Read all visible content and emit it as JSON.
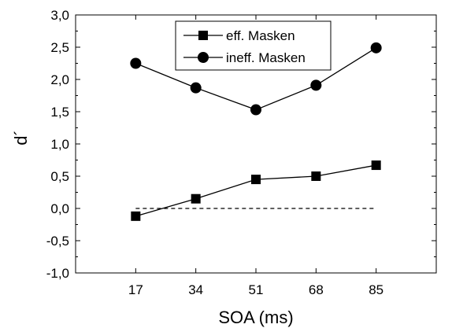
{
  "chart_data": {
    "type": "line",
    "title": "",
    "xlabel": "SOA (ms)",
    "ylabel": "d´",
    "x_categories": [
      17,
      34,
      51,
      68,
      85
    ],
    "x_tick_labels": [
      "17",
      "34",
      "51",
      "68",
      "85"
    ],
    "y_ticks": [
      -1.0,
      -0.5,
      0.0,
      0.5,
      1.0,
      1.5,
      2.0,
      2.5,
      3.0
    ],
    "y_tick_labels": [
      "-1,0",
      "-0,5",
      "0,0",
      "0,5",
      "1,0",
      "1,5",
      "2,0",
      "2,5",
      "3,0"
    ],
    "ylim": [
      -1.0,
      3.0
    ],
    "xlim": [
      0,
      102
    ],
    "grid": false,
    "legend_position": "top-center",
    "series": [
      {
        "name": "eff. Masken",
        "marker": "square",
        "color": "#000000",
        "values": [
          -0.12,
          0.15,
          0.45,
          0.5,
          0.67
        ]
      },
      {
        "name": "ineff. Masken",
        "marker": "circle",
        "color": "#000000",
        "values": [
          2.25,
          1.87,
          1.53,
          1.91,
          2.49
        ]
      }
    ],
    "reference_line": {
      "y": 0.0,
      "style": "dashed",
      "color": "#000000"
    }
  }
}
